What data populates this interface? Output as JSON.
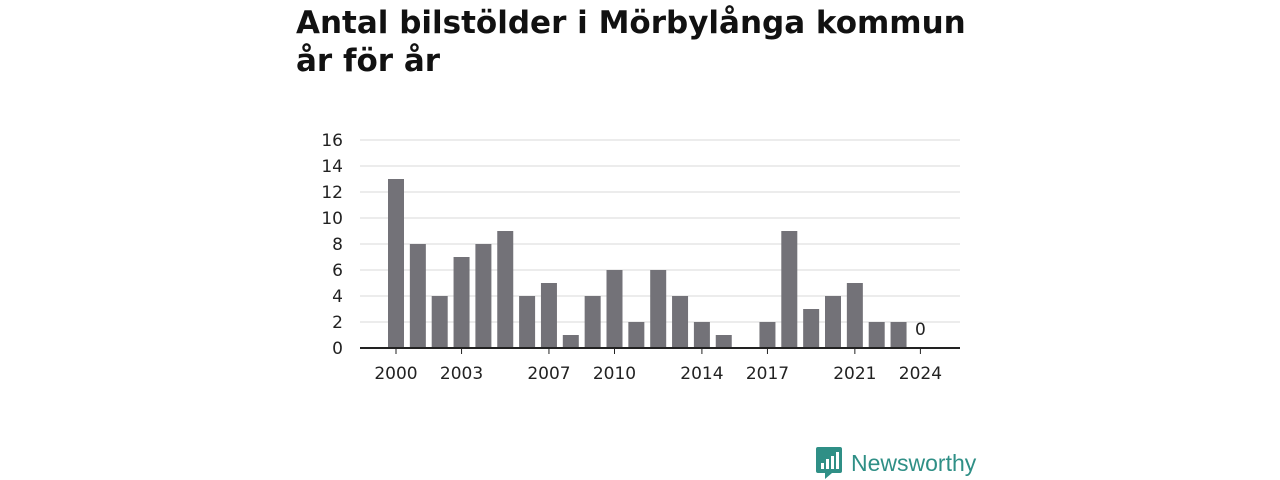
{
  "title": "Antal bilstölder i Mörbylånga kommun år för år",
  "brand": {
    "name": "Newsworthy",
    "icon": "newsworthy-logo-icon",
    "color": "#2f8f86"
  },
  "colors": {
    "bar": "#737278",
    "grid": "#d9d9d9",
    "axis": "#222222"
  },
  "chart_data": {
    "type": "bar",
    "title": "Antal bilstölder i Mörbylånga kommun år för år",
    "xlabel": "",
    "ylabel": "",
    "categories": [
      "2000",
      "2001",
      "2002",
      "2003",
      "2004",
      "2005",
      "2006",
      "2007",
      "2008",
      "2009",
      "2010",
      "2011",
      "2012",
      "2013",
      "2014",
      "2015",
      "2016",
      "2017",
      "2018",
      "2019",
      "2020",
      "2021",
      "2022",
      "2023",
      "2024"
    ],
    "values": [
      13,
      8,
      4,
      7,
      8,
      9,
      4,
      5,
      1,
      4,
      6,
      2,
      6,
      4,
      2,
      1,
      0,
      2,
      9,
      3,
      4,
      5,
      2,
      2,
      0
    ],
    "x_tick_labels": [
      "2000",
      "2003",
      "2007",
      "2010",
      "2014",
      "2017",
      "2021",
      "2024"
    ],
    "y_ticks": [
      0,
      2,
      4,
      6,
      8,
      10,
      12,
      14,
      16
    ],
    "ylim": [
      0,
      16
    ],
    "grid": true,
    "annotations": [
      {
        "category": "2024",
        "text": "0"
      }
    ]
  }
}
